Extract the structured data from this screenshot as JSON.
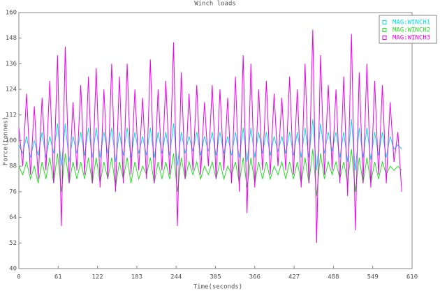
{
  "chart_data": {
    "type": "line",
    "title": "Winch loads",
    "x_label": "Time(seconds)",
    "y_label": "Force(tonnes)",
    "x": [
      0,
      6,
      12,
      18,
      24,
      30,
      36,
      42,
      48,
      54,
      60,
      66,
      72,
      78,
      84,
      90,
      96,
      102,
      108,
      114,
      120,
      126,
      132,
      138,
      144,
      150,
      156,
      162,
      168,
      174,
      180,
      186,
      192,
      198,
      204,
      210,
      216,
      222,
      228,
      234,
      240,
      246,
      252,
      258,
      264,
      270,
      276,
      282,
      288,
      294,
      300,
      306,
      312,
      318,
      324,
      330,
      336,
      342,
      348,
      354,
      360,
      366,
      372,
      378,
      384,
      390,
      396,
      402,
      408,
      414,
      420,
      426,
      432,
      438,
      444,
      450,
      456,
      462,
      468,
      474,
      480,
      486,
      492,
      498,
      504,
      510,
      516,
      522,
      528,
      534,
      540,
      546,
      552,
      558,
      564,
      570,
      576,
      582,
      588,
      594
    ],
    "series": [
      {
        "name": "MAG:WINCH1",
        "color": "#00e0e0",
        "values": [
          98,
          94,
          102,
          92,
          100,
          93,
          104,
          92,
          102,
          94,
          108,
          88,
          108,
          90,
          102,
          94,
          104,
          93,
          106,
          92,
          106,
          92,
          104,
          94,
          106,
          90,
          104,
          93,
          106,
          92,
          104,
          94,
          102,
          93,
          106,
          92,
          104,
          94,
          104,
          93,
          108,
          88,
          104,
          94,
          102,
          95,
          104,
          93,
          102,
          95,
          104,
          93,
          104,
          94,
          102,
          93,
          104,
          92,
          106,
          90,
          106,
          92,
          104,
          94,
          104,
          93,
          102,
          95,
          102,
          94,
          104,
          93,
          104,
          92,
          106,
          92,
          110,
          86,
          108,
          94,
          104,
          95,
          104,
          92,
          104,
          90,
          110,
          86,
          106,
          92,
          106,
          91,
          104,
          93,
          104,
          92,
          102,
          96,
          98,
          96
        ]
      },
      {
        "name": "MAG:WINCH2",
        "color": "#22dd22",
        "values": [
          88,
          84,
          90,
          82,
          88,
          80,
          90,
          82,
          92,
          80,
          94,
          76,
          94,
          80,
          90,
          82,
          90,
          82,
          92,
          80,
          92,
          80,
          90,
          82,
          92,
          78,
          90,
          82,
          92,
          80,
          90,
          82,
          88,
          84,
          92,
          80,
          90,
          82,
          90,
          82,
          94,
          76,
          92,
          82,
          90,
          84,
          90,
          82,
          88,
          84,
          90,
          82,
          90,
          82,
          88,
          84,
          90,
          80,
          92,
          78,
          92,
          80,
          90,
          82,
          90,
          82,
          88,
          84,
          90,
          82,
          90,
          82,
          90,
          80,
          92,
          80,
          96,
          74,
          94,
          82,
          90,
          84,
          90,
          82,
          90,
          80,
          96,
          76,
          92,
          80,
          92,
          80,
          90,
          82,
          90,
          84,
          88,
          86,
          88,
          86
        ]
      },
      {
        "name": "MAG:WINCH3",
        "color": "#ee00ee",
        "values": [
          106,
          88,
          122,
          84,
          116,
          82,
          120,
          86,
          128,
          80,
          140,
          60,
          144,
          80,
          118,
          86,
          126,
          84,
          130,
          80,
          134,
          78,
          124,
          82,
          136,
          76,
          130,
          80,
          136,
          84,
          124,
          86,
          120,
          82,
          138,
          80,
          124,
          86,
          128,
          84,
          146,
          60,
          132,
          82,
          122,
          86,
          126,
          84,
          118,
          88,
          126,
          82,
          124,
          86,
          120,
          80,
          130,
          76,
          140,
          66,
          136,
          78,
          124,
          86,
          128,
          84,
          122,
          88,
          120,
          86,
          130,
          84,
          124,
          78,
          136,
          80,
          152,
          52,
          140,
          84,
          126,
          86,
          124,
          80,
          130,
          74,
          150,
          58,
          132,
          80,
          136,
          78,
          128,
          84,
          126,
          80,
          118,
          90,
          104,
          76
        ]
      }
    ],
    "xlim": [
      0,
      610
    ],
    "xticks": [
      0,
      61,
      122,
      183,
      244,
      305,
      366,
      427,
      488,
      549,
      610
    ],
    "ylim": [
      40,
      160
    ],
    "yticks": [
      40,
      52,
      64,
      76,
      88,
      100,
      112,
      124,
      136,
      148,
      160
    ]
  }
}
